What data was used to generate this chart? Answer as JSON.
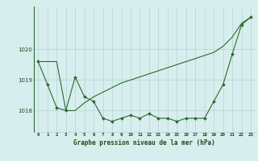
{
  "x": [
    0,
    1,
    2,
    3,
    4,
    5,
    6,
    7,
    8,
    9,
    10,
    11,
    12,
    13,
    14,
    15,
    16,
    17,
    18,
    19,
    20,
    21,
    22,
    23
  ],
  "y_actual": [
    1019.6,
    1018.85,
    1018.1,
    1018.0,
    1019.1,
    1018.45,
    1018.3,
    1017.75,
    1017.65,
    1017.75,
    1017.85,
    1017.75,
    1017.9,
    1017.75,
    1017.75,
    1017.65,
    1017.75,
    1017.75,
    1017.75,
    1018.3,
    1018.85,
    1019.85,
    1020.8,
    1021.05
  ],
  "y_smooth": [
    1019.6,
    1019.6,
    1019.6,
    1018.0,
    1018.0,
    1018.25,
    1018.45,
    1018.6,
    1018.75,
    1018.9,
    1019.0,
    1019.1,
    1019.2,
    1019.3,
    1019.4,
    1019.5,
    1019.6,
    1019.7,
    1019.8,
    1019.9,
    1020.1,
    1020.4,
    1020.85,
    1021.05
  ],
  "yticks": [
    1018,
    1019,
    1020
  ],
  "ylim": [
    1017.3,
    1021.4
  ],
  "xlim": [
    -0.5,
    23.5
  ],
  "line_color": "#2d6a2d",
  "bg_color": "#d8eeee",
  "grid_color": "#b0d4d4",
  "xlabel": "Graphe pression niveau de la mer (hPa)",
  "title_color": "#1a4a1a"
}
